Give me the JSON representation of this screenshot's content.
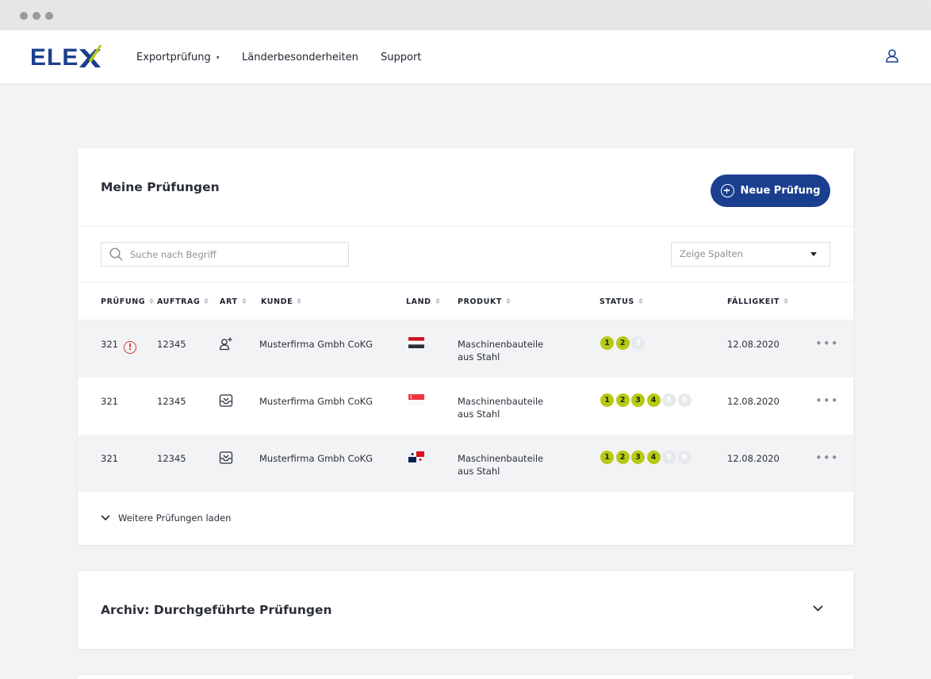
{
  "nav": {
    "logo_text": "ELEX",
    "items": [
      {
        "label": "Exportprüfung",
        "has_dropdown": true
      },
      {
        "label": "Länderbesonderheiten"
      },
      {
        "label": "Support"
      }
    ],
    "user_icon": "user-icon"
  },
  "main": {
    "title": "Meine Prüfungen",
    "new_button": "Neue Prüfung",
    "search_placeholder": "Suche nach Begriff",
    "columns_select": "Zeige Spalten",
    "headers": {
      "pruefung": "PRÜFUNG",
      "auftrag": "AUFTRAG",
      "art": "ART",
      "kunde": "KUNDE",
      "land": "LAND",
      "produkt": "PRODUKT",
      "status": "STATUS",
      "faelligkeit": "FÄLLIGKEIT"
    },
    "rows": [
      {
        "pruefung": "321",
        "warning": "!",
        "auftrag": "12345",
        "art_icon": "add-user-icon",
        "kunde": "Musterfirma Gmbh CoKG",
        "land_icon": "flag-yemen-icon",
        "produkt_line1": "Maschinenbauteile",
        "produkt_line2": "aus Stahl",
        "status_done": [
          "1",
          "2"
        ],
        "status_open": [
          "3"
        ],
        "faelligkeit": "12.08.2020"
      },
      {
        "pruefung": "321",
        "auftrag": "12345",
        "art_icon": "inbox-icon",
        "kunde": "Musterfirma Gmbh CoKG",
        "land_icon": "flag-singapore-icon",
        "produkt_line1": "Maschinenbauteile",
        "produkt_line2": "aus Stahl",
        "status_done": [
          "1",
          "2",
          "3",
          "4"
        ],
        "status_open": [
          "5",
          "6"
        ],
        "faelligkeit": "12.08.2020"
      },
      {
        "pruefung": "321",
        "auftrag": "12345",
        "art_icon": "inbox-icon",
        "kunde": "Musterfirma Gmbh CoKG",
        "land_icon": "flag-panama-icon",
        "produkt_line1": "Maschinenbauteile",
        "produkt_line2": "aus Stahl",
        "status_done": [
          "1",
          "2",
          "3",
          "4"
        ],
        "status_open": [
          "5",
          "6"
        ],
        "faelligkeit": "12.08.2020"
      }
    ],
    "load_more": "Weitere Prüfungen laden"
  },
  "archive": {
    "title": "Archiv: Durchgeführte Prüfungen"
  },
  "colors": {
    "brand_blue": "#1a3f8f",
    "status_green": "#b7c914",
    "warning_red": "#d23a3a"
  }
}
